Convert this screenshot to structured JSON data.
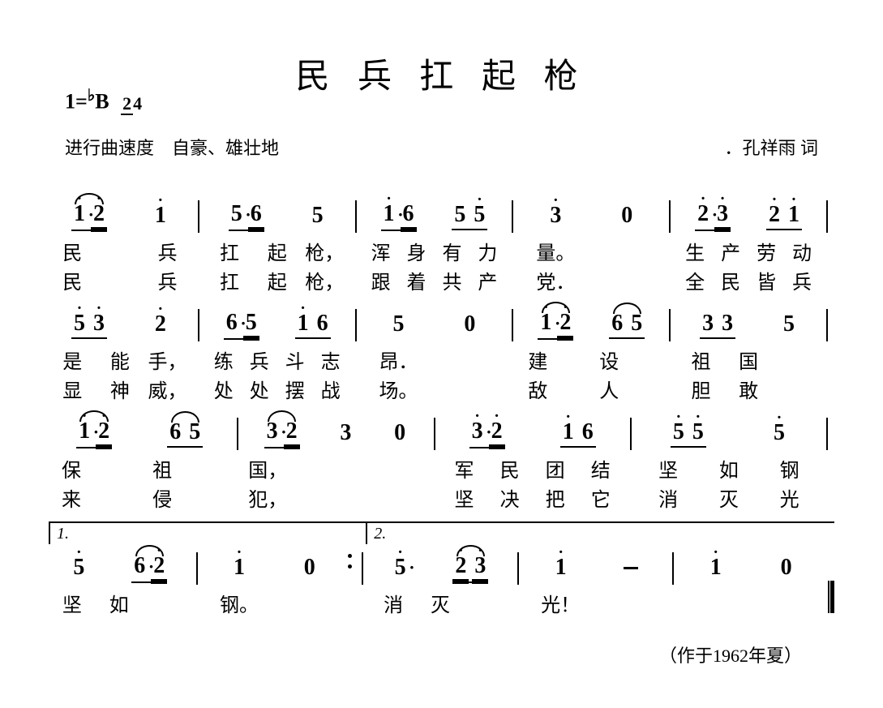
{
  "title": "民 兵 扛 起 枪",
  "key": {
    "tonic": "1=",
    "accidental": "♭",
    "note": "B",
    "time_num": "2",
    "time_den": "4"
  },
  "tempo": "进行曲速度　自豪、雄壮地",
  "credit": "．孔祥雨 词",
  "footer": "（作于1962年夏）",
  "typography": {
    "title_fontsize": 42,
    "note_fontsize": 28,
    "lyric_fontsize": 24,
    "meta_fontsize": 22
  },
  "colors": {
    "text": "#000000",
    "background": "#ffffff"
  },
  "notation": {
    "type": "jianpu",
    "systems": [
      {
        "measures": [
          {
            "notes": [
              {
                "n": "1",
                "hi": true,
                "dotA": true,
                "beam": 1,
                "slur": "start"
              },
              {
                "n": "2",
                "hi": true,
                "beam": 1,
                "dblU": true,
                "slur": "end"
              },
              {
                "n": "1",
                "hi": true
              }
            ],
            "lyric1": [
              "民",
              "",
              "兵"
            ],
            "lyric2": [
              "民",
              "",
              "兵"
            ]
          },
          {
            "notes": [
              {
                "n": "5",
                "dotA": true,
                "beam": 1
              },
              {
                "n": "6",
                "beam": 1,
                "dblU": true
              },
              {
                "n": "5"
              }
            ],
            "lyric1": [
              "扛",
              "起",
              "枪，"
            ],
            "lyric2": [
              "扛",
              "起",
              "枪，"
            ]
          },
          {
            "notes": [
              {
                "n": "1",
                "hi": true,
                "dotA": true,
                "beam": 1
              },
              {
                "n": "6",
                "beam": 1,
                "dblU": true
              },
              {
                "n": "5",
                "beam": 2
              },
              {
                "n": "5",
                "hi": true,
                "beam": 2
              }
            ],
            "lyric1": [
              "浑",
              "身",
              "有",
              "力"
            ],
            "lyric2": [
              "跟",
              "着",
              "共",
              "产"
            ]
          },
          {
            "notes": [
              {
                "n": "3",
                "hi": true
              },
              {
                "n": "0"
              }
            ],
            "lyric1": [
              "量。",
              ""
            ],
            "lyric2": [
              "党．",
              ""
            ]
          },
          {
            "notes": [
              {
                "n": "2",
                "hi": true,
                "dotA": true,
                "beam": 1
              },
              {
                "n": "3",
                "hi": true,
                "beam": 1,
                "dblU": true
              },
              {
                "n": "2",
                "hi": true,
                "beam": 2
              },
              {
                "n": "1",
                "hi": true,
                "beam": 2
              }
            ],
            "lyric1": [
              "生",
              "产",
              "劳",
              "动"
            ],
            "lyric2": [
              "全",
              "民",
              "皆",
              "兵"
            ]
          }
        ]
      },
      {
        "measures": [
          {
            "notes": [
              {
                "n": "5",
                "hi": true,
                "beam": 1
              },
              {
                "n": "3",
                "hi": true,
                "beam": 1
              },
              {
                "n": "2",
                "hi": true
              }
            ],
            "lyric1": [
              "是",
              "能",
              "手，"
            ],
            "lyric2": [
              "显",
              "神",
              "威，"
            ]
          },
          {
            "notes": [
              {
                "n": "6",
                "dotA": true,
                "beam": 1
              },
              {
                "n": "5",
                "beam": 1,
                "dblU": true
              },
              {
                "n": "1",
                "hi": true,
                "beam": 2
              },
              {
                "n": "6",
                "beam": 2
              }
            ],
            "lyric1": [
              "练",
              "兵",
              "斗",
              "志"
            ],
            "lyric2": [
              "处",
              "处",
              "摆",
              "战"
            ]
          },
          {
            "notes": [
              {
                "n": "5"
              },
              {
                "n": "0"
              }
            ],
            "lyric1": [
              "昂．",
              ""
            ],
            "lyric2": [
              "场。",
              ""
            ]
          },
          {
            "notes": [
              {
                "n": "1",
                "hi": true,
                "dotA": true,
                "beam": 1,
                "slur": "start"
              },
              {
                "n": "2",
                "hi": true,
                "beam": 1,
                "dblU": true,
                "slur": "end"
              },
              {
                "n": "6",
                "beam": 2,
                "slur": "start"
              },
              {
                "n": "5",
                "beam": 2,
                "slur": "end"
              }
            ],
            "lyric1": [
              "建",
              "",
              "设",
              ""
            ],
            "lyric2": [
              "敌",
              "",
              "人",
              ""
            ]
          },
          {
            "notes": [
              {
                "n": "3",
                "beam": 1
              },
              {
                "n": "3",
                "beam": 1
              },
              {
                "n": "5",
                "slur": "start"
              }
            ],
            "lyric1": [
              "祖",
              "国",
              ""
            ],
            "lyric2": [
              "胆",
              "敢",
              ""
            ]
          }
        ]
      },
      {
        "measures": [
          {
            "notes": [
              {
                "n": "1",
                "hi": true,
                "dotA": true,
                "beam": 1,
                "slur": "start"
              },
              {
                "n": "2",
                "hi": true,
                "beam": 1,
                "dblU": true,
                "slur": "end"
              },
              {
                "n": "6",
                "beam": 2,
                "slur": "start"
              },
              {
                "n": "5",
                "beam": 2,
                "slur": "end"
              }
            ],
            "lyric1": [
              "保",
              "",
              "祖",
              ""
            ],
            "lyric2": [
              "来",
              "",
              "侵",
              ""
            ]
          },
          {
            "notes": [
              {
                "n": "3",
                "dotA": true,
                "beam": 1,
                "slur": "start"
              },
              {
                "n": "2",
                "beam": 1,
                "dblU": true,
                "slur": "end"
              },
              {
                "n": "3"
              },
              {
                "n": "0"
              }
            ],
            "lyric1": [
              "国，",
              "",
              "",
              ""
            ],
            "lyric2": [
              "犯，",
              "",
              "",
              ""
            ]
          },
          {
            "notes": [
              {
                "n": "3",
                "hi": true,
                "dotA": true,
                "beam": 1
              },
              {
                "n": "2",
                "hi": true,
                "beam": 1,
                "dblU": true
              },
              {
                "n": "1",
                "hi": true,
                "beam": 2
              },
              {
                "n": "6",
                "beam": 2
              }
            ],
            "lyric1": [
              "军",
              "民",
              "团",
              "结"
            ],
            "lyric2": [
              "坚",
              "决",
              "把",
              "它"
            ]
          },
          {
            "notes": [
              {
                "n": "5",
                "hi": true,
                "beam": 1
              },
              {
                "n": "5",
                "hi": true,
                "beam": 1
              },
              {
                "n": "5",
                "hi": true
              }
            ],
            "lyric1": [
              "坚",
              "如",
              "钢"
            ],
            "lyric2": [
              "消",
              "灭",
              "光"
            ]
          }
        ]
      },
      {
        "voltas": [
          {
            "num": "1.",
            "span": 2
          },
          {
            "num": "2.",
            "span": 3
          }
        ],
        "measures": [
          {
            "volta": 1,
            "notes": [
              {
                "n": "5",
                "hi": true
              },
              {
                "n": "6",
                "dotA": true,
                "beam": 1,
                "slur": "start"
              },
              {
                "n": "2",
                "hi": true,
                "beam": 1,
                "dblU": true,
                "slur": "end"
              }
            ],
            "lyric1": [
              "坚",
              "如",
              ""
            ],
            "lyric2": [
              "",
              "",
              ""
            ]
          },
          {
            "volta": 1,
            "notes": [
              {
                "n": "1",
                "hi": true
              },
              {
                "n": "0"
              }
            ],
            "repeat_end": true,
            "lyric1": [
              "钢。",
              ""
            ],
            "lyric2": [
              "",
              ""
            ]
          },
          {
            "volta": 2,
            "notes": [
              {
                "n": "5",
                "hi": true,
                "dotA": true
              },
              {
                "n": "2",
                "hi": true,
                "beam": 1,
                "dblU": true,
                "slur": "start"
              },
              {
                "n": "3",
                "hi": true,
                "beam": 1,
                "dblU": true
              }
            ],
            "lyric1": [
              "消",
              "灭",
              ""
            ],
            "lyric2": [
              "",
              "",
              ""
            ]
          },
          {
            "volta": 2,
            "notes": [
              {
                "n": "1",
                "hi": true,
                "slur": "end"
              },
              {
                "n": "-"
              }
            ],
            "lyric1": [
              "光！",
              ""
            ],
            "lyric2": [
              "",
              ""
            ]
          },
          {
            "volta": 2,
            "notes": [
              {
                "n": "1",
                "hi": true
              },
              {
                "n": "0"
              }
            ],
            "final": true,
            "lyric1": [
              "",
              ""
            ],
            "lyric2": [
              "",
              ""
            ]
          }
        ]
      }
    ]
  }
}
